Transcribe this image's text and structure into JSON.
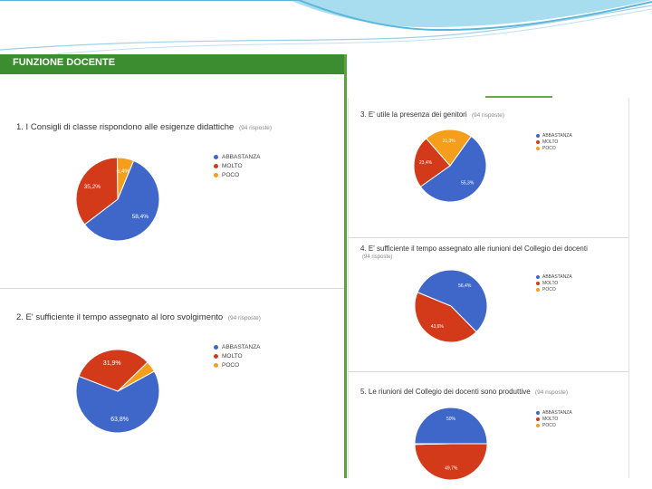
{
  "header": {
    "title": "FUNZIONE DOCENTE"
  },
  "colors": {
    "blue": "#3f67c9",
    "red": "#d33a1a",
    "orange": "#f59e1b",
    "green": "#3c8d2f"
  },
  "chart_data": [
    {
      "type": "pie",
      "title": "1. I Consigli di classe rispondono alle esigenze didattiche",
      "responses": "(94 risposte)",
      "categories": [
        "ABBASTANZA",
        "MOLTO",
        "POCO"
      ],
      "values": [
        58.4,
        35.2,
        6.4
      ],
      "labels": [
        "58,4%",
        "35,2%",
        "6,4%"
      ]
    },
    {
      "type": "pie",
      "title": "2. E' sufficiente il tempo assegnato al loro svolgimento",
      "responses": "(94 risposte)",
      "categories": [
        "ABBASTANZA",
        "MOLTO",
        "POCO"
      ],
      "values": [
        63.8,
        31.9,
        4.3
      ],
      "labels": [
        "63,8%",
        "31,9%",
        ""
      ]
    },
    {
      "type": "pie",
      "title": "3. E' utile la presenza dei genitori",
      "responses": "(94 risposte)",
      "categories": [
        "ABBASTANZA",
        "MOLTO",
        "POCO"
      ],
      "values": [
        55.3,
        23.4,
        21.3
      ],
      "labels": [
        "55,3%",
        "23,4%",
        "21,3%"
      ]
    },
    {
      "type": "pie",
      "title": "4. E' sufficiente il tempo assegnato alle riunioni del Collegio dei docenti",
      "responses": "(94 risposte)",
      "categories": [
        "ABBASTANZA",
        "MOLTO",
        "POCO"
      ],
      "values": [
        56.4,
        43.6,
        0
      ],
      "labels": [
        "56,4%",
        "43,6%",
        ""
      ]
    },
    {
      "type": "pie",
      "title": "5. Le riunioni del Collegio dei docenti sono produttive",
      "responses": "(94 risposte)",
      "categories": [
        "ABBASTANZA",
        "MOLTO",
        "POCO"
      ],
      "values": [
        50,
        49.7,
        0.3
      ],
      "labels": [
        "50%",
        "49,7%",
        ""
      ]
    }
  ]
}
